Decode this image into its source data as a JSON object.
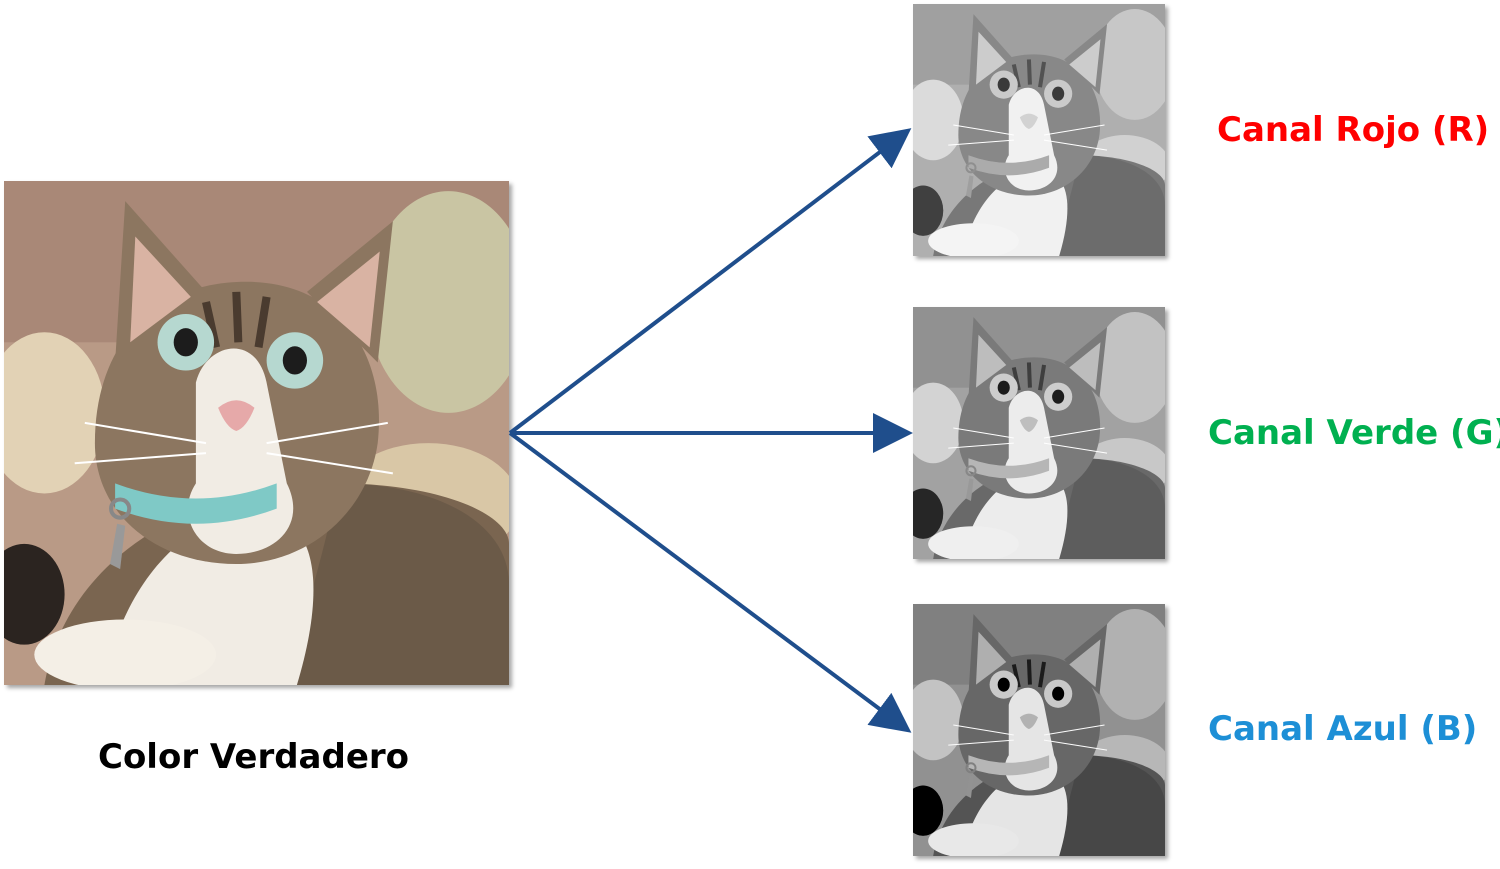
{
  "main_image": {
    "label": "Color Verdadero",
    "icon": "cat-photo-icon"
  },
  "channels": [
    {
      "label": "Canal Rojo (R)",
      "color": "#ff0000"
    },
    {
      "label": "Canal Verde (G)",
      "color": "#00b050"
    },
    {
      "label": "Canal Azul (B)",
      "color": "#1d8fd6"
    }
  ],
  "arrow_color": "#1f4e8c"
}
